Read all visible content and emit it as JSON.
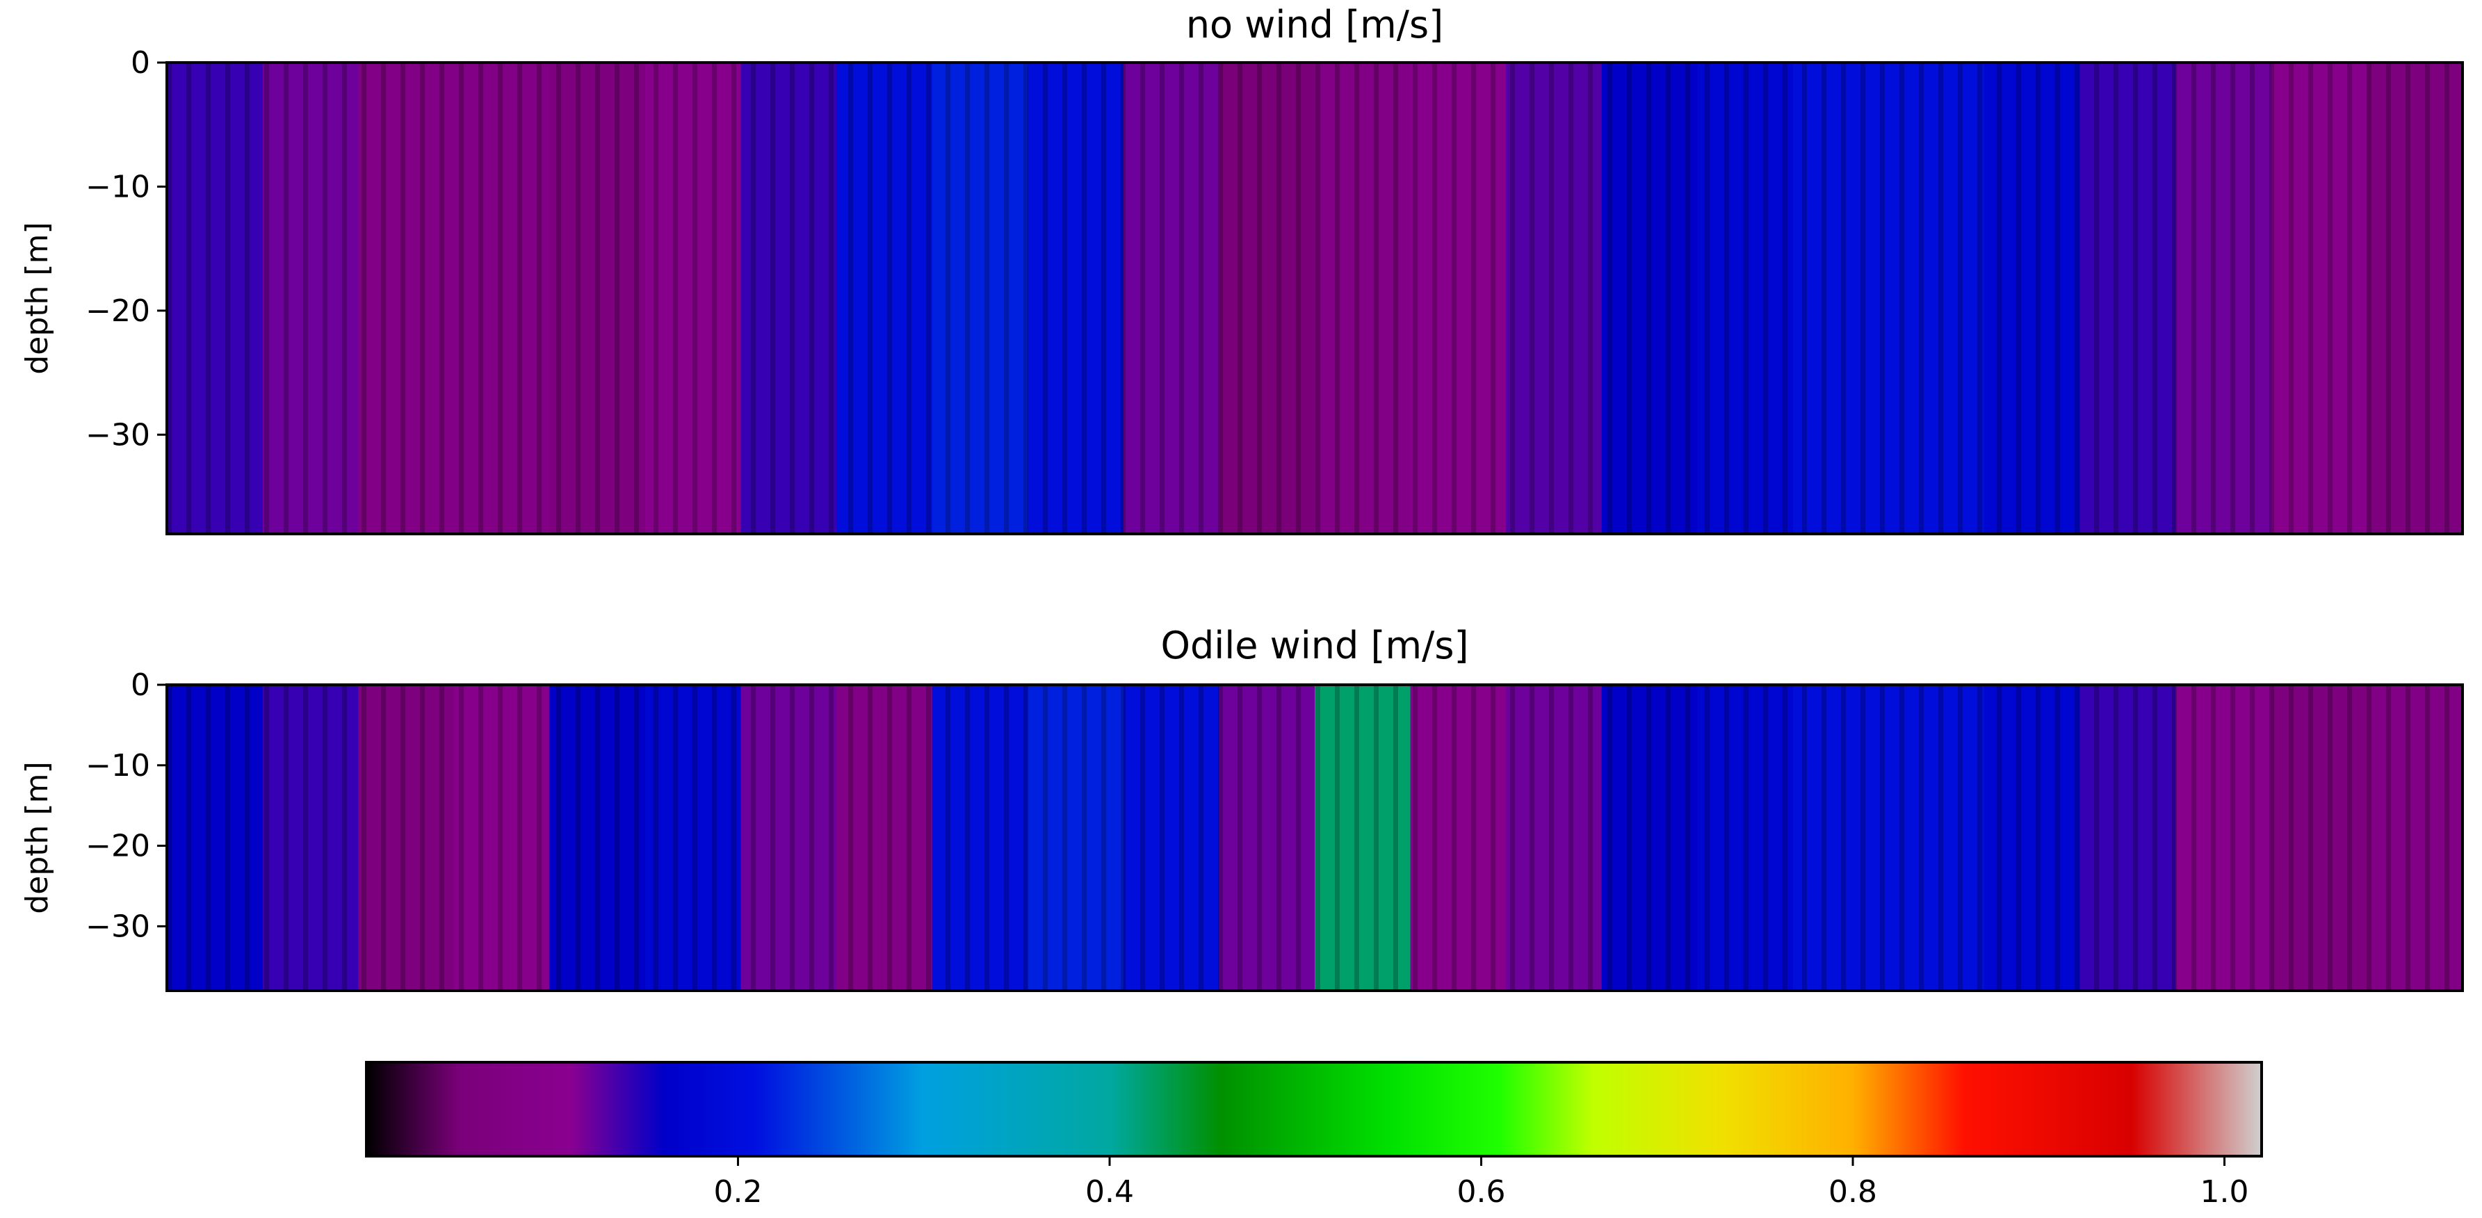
{
  "chart_data": [
    {
      "type": "heatmap",
      "title": "no wind [m/s]",
      "xlabel": "",
      "ylabel": "depth [m]",
      "ylim": [
        -38,
        0
      ],
      "yticks": [
        0,
        -10,
        -20,
        -30
      ],
      "ytick_labels": [
        "0",
        "−10",
        "−20",
        "−30"
      ],
      "xticks": [],
      "color_profile": {
        "description_values": "speed along the section, left to right (data units m/s)",
        "columns": [
          0.14,
          0.12,
          0.08,
          0.08,
          0.06,
          0.1,
          0.14,
          0.2,
          0.22,
          0.2,
          0.12,
          0.05,
          0.08,
          0.1,
          0.13,
          0.16,
          0.18,
          0.2,
          0.2,
          0.18,
          0.14,
          0.12,
          0.1,
          0.06
        ]
      }
    },
    {
      "type": "heatmap",
      "title": "Odile wind [m/s]",
      "xlabel": "",
      "ylabel": "depth [m]",
      "ylim": [
        -38,
        0
      ],
      "yticks": [
        0,
        -10,
        -20,
        -30
      ],
      "ytick_labels": [
        "0",
        "−10",
        "−20",
        "−30"
      ],
      "xticks": [],
      "color_profile": {
        "description_values": "speed along the section, left to right (data units m/s)",
        "columns": [
          0.16,
          0.14,
          0.06,
          0.1,
          0.16,
          0.18,
          0.12,
          0.08,
          0.2,
          0.22,
          0.2,
          0.12,
          0.42,
          0.1,
          0.12,
          0.16,
          0.18,
          0.2,
          0.2,
          0.18,
          0.14,
          0.1,
          0.06,
          0.08
        ]
      }
    }
  ],
  "colorbar": {
    "range": [
      0.0,
      1.02
    ],
    "ticks": [
      0.2,
      0.4,
      0.6,
      0.8,
      1.0
    ],
    "tick_labels": [
      "0.2",
      "0.4",
      "0.6",
      "0.8",
      "1.0"
    ],
    "colormap_stops": [
      {
        "v": 0.0,
        "color": "#000000"
      },
      {
        "v": 0.05,
        "color": "#7a007a"
      },
      {
        "v": 0.11,
        "color": "#8a0090"
      },
      {
        "v": 0.16,
        "color": "#0000c8"
      },
      {
        "v": 0.21,
        "color": "#0010e0"
      },
      {
        "v": 0.3,
        "color": "#00a0e0"
      },
      {
        "v": 0.4,
        "color": "#00a8a0"
      },
      {
        "v": 0.46,
        "color": "#009000"
      },
      {
        "v": 0.55,
        "color": "#00e000"
      },
      {
        "v": 0.61,
        "color": "#20ff00"
      },
      {
        "v": 0.66,
        "color": "#c0ff00"
      },
      {
        "v": 0.73,
        "color": "#f0e000"
      },
      {
        "v": 0.8,
        "color": "#ffb000"
      },
      {
        "v": 0.86,
        "color": "#ff1000"
      },
      {
        "v": 0.95,
        "color": "#d80000"
      },
      {
        "v": 1.02,
        "color": "#d0d0d0"
      }
    ]
  }
}
